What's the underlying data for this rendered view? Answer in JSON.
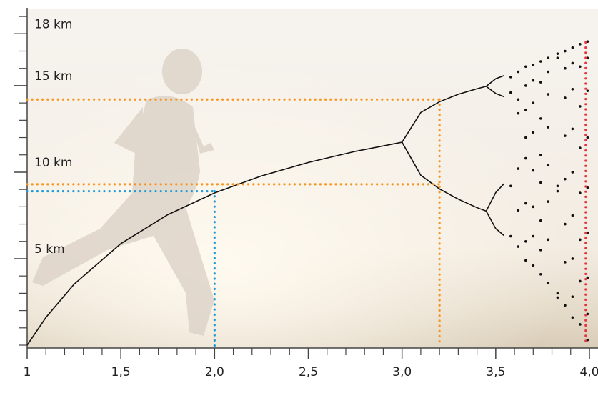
{
  "chart_data": {
    "type": "line",
    "xlim": [
      1,
      4
    ],
    "ylim": [
      0,
      19.5
    ],
    "xticks": [
      1,
      {
        "value": 1.5,
        "label": "1,5"
      },
      {
        "value": 2.0,
        "label": "2,0"
      },
      {
        "value": 2.5,
        "label": "2,5"
      },
      {
        "value": 3.0,
        "label": "3,0"
      },
      {
        "value": 3.5,
        "label": "3,5"
      },
      {
        "value": 4.0,
        "label": "4,0"
      }
    ],
    "xminorticks": [
      1.1,
      1.2,
      1.3,
      1.4,
      1.6,
      1.7,
      1.8,
      1.9,
      2.1,
      2.2,
      2.3,
      2.4,
      2.6,
      2.7,
      2.8,
      2.9,
      3.1,
      3.2,
      3.3,
      3.4,
      3.6,
      3.7,
      3.8,
      3.9
    ],
    "yticks": [
      {
        "value": 5,
        "label": "5 km"
      },
      {
        "value": 10,
        "label": "10 km"
      },
      {
        "value": 15,
        "label": "15 km"
      },
      {
        "value": 18,
        "label": "18 km"
      }
    ],
    "yminorticks": [
      0,
      1,
      2,
      3,
      4,
      6,
      7,
      8,
      9,
      11,
      12,
      13,
      14,
      16,
      17,
      19
    ],
    "color": "#111111",
    "series": [
      {
        "type": "line",
        "x": [
          1,
          1.1,
          1.25,
          1.5,
          1.75,
          2.0,
          2.25,
          2.5,
          2.75,
          3.0
        ],
        "values": [
          0,
          1.6,
          3.52,
          5.87,
          7.54,
          8.8,
          9.78,
          10.56,
          11.2,
          11.73
        ]
      },
      {
        "type": "line",
        "x": [
          3.0,
          3.1,
          3.2,
          3.3,
          3.4,
          3.449
        ],
        "values": [
          11.73,
          13.45,
          14.07,
          14.5,
          14.82,
          14.96
        ]
      },
      {
        "type": "line",
        "x": [
          3.0,
          3.1,
          3.2,
          3.3,
          3.4,
          3.449
        ],
        "values": [
          11.73,
          9.82,
          9.03,
          8.44,
          7.95,
          7.75
        ]
      },
      {
        "type": "line",
        "x": [
          3.449,
          3.5,
          3.544
        ],
        "values": [
          14.96,
          15.4,
          15.58
        ]
      },
      {
        "type": "line",
        "x": [
          3.449,
          3.5,
          3.544
        ],
        "values": [
          14.96,
          14.55,
          14.36
        ]
      },
      {
        "type": "line",
        "x": [
          3.449,
          3.5,
          3.544
        ],
        "values": [
          7.75,
          8.82,
          9.33
        ]
      },
      {
        "type": "line",
        "x": [
          3.449,
          3.5,
          3.544
        ],
        "values": [
          7.75,
          6.74,
          6.34
        ]
      },
      {
        "type": "scatter",
        "x": [
          3.58,
          3.58,
          3.58,
          3.58,
          3.62,
          3.62,
          3.62,
          3.62,
          3.62,
          3.62,
          3.66,
          3.66,
          3.66,
          3.66,
          3.66,
          3.66,
          3.66,
          3.66,
          3.7,
          3.7,
          3.7,
          3.7,
          3.7,
          3.7,
          3.7,
          3.7,
          3.74,
          3.74,
          3.74,
          3.74,
          3.74,
          3.74,
          3.74,
          3.74,
          3.78,
          3.78,
          3.78,
          3.78,
          3.78,
          3.78,
          3.78,
          3.78,
          3.83,
          3.83,
          3.83,
          3.83,
          3.83,
          3.83,
          3.87,
          3.87,
          3.87,
          3.87,
          3.87,
          3.87,
          3.87,
          3.87,
          3.91,
          3.91,
          3.91,
          3.91,
          3.91,
          3.91,
          3.91,
          3.91,
          3.91,
          3.95,
          3.95,
          3.95,
          3.95,
          3.95,
          3.95,
          3.95,
          3.95,
          3.99,
          3.99,
          3.99,
          3.99,
          3.99,
          3.99,
          3.99,
          3.99,
          3.99
        ],
        "values": [
          15.5,
          14.6,
          9.2,
          6.3,
          15.8,
          14.2,
          13.4,
          10.2,
          7.8,
          5.7,
          16.1,
          15.0,
          13.6,
          12.0,
          10.8,
          8.2,
          6.0,
          4.9,
          16.2,
          15.3,
          14.0,
          12.3,
          10.1,
          8.0,
          6.3,
          4.6,
          16.4,
          15.2,
          13.1,
          11.0,
          9.4,
          7.2,
          5.5,
          4.1,
          16.6,
          15.8,
          14.5,
          12.6,
          10.4,
          8.3,
          6.1,
          3.6,
          16.85,
          16.6,
          8.9,
          9.2,
          2.75,
          3.0,
          17.0,
          16.0,
          14.3,
          12.1,
          9.6,
          7.0,
          4.8,
          2.3,
          17.2,
          16.3,
          14.8,
          12.5,
          10.0,
          7.5,
          5.0,
          2.8,
          1.6,
          17.4,
          16.1,
          13.8,
          11.4,
          8.8,
          6.1,
          3.7,
          1.2,
          17.55,
          16.6,
          14.7,
          12.0,
          9.1,
          6.5,
          3.9,
          1.8,
          0.3
        ]
      }
    ],
    "guides": [
      {
        "color": "#f7941d",
        "x": 3.2,
        "y": 14.2
      },
      {
        "color": "#f7941d",
        "x": 3.2,
        "y": 9.3
      },
      {
        "color": "#1a9bd7",
        "x": 2.0,
        "y": 8.9
      },
      {
        "color": "#e8323c",
        "x": 3.98,
        "y": 17.5
      }
    ]
  }
}
